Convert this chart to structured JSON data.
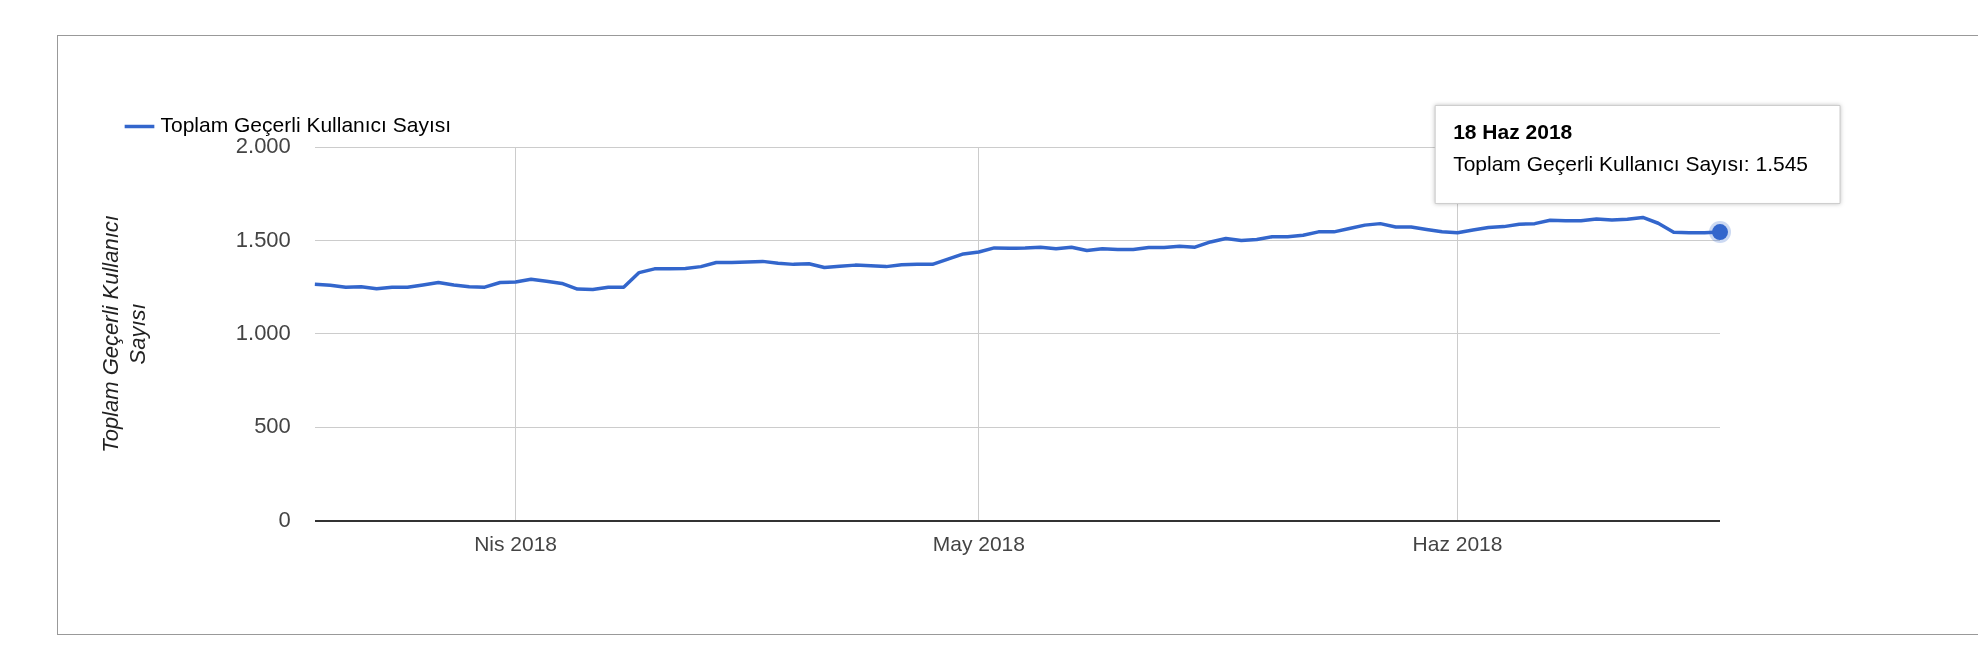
{
  "chart_data": {
    "type": "line",
    "ylabel": "Toplam Geçerli Kullanıcı Sayısı",
    "legend": "top left",
    "grid": true,
    "marker": "none",
    "line_style": "solid",
    "x": [
      "2018-03-19",
      "2018-03-20",
      "2018-03-21",
      "2018-03-22",
      "2018-03-23",
      "2018-03-24",
      "2018-03-25",
      "2018-03-26",
      "2018-03-27",
      "2018-03-28",
      "2018-03-29",
      "2018-03-30",
      "2018-03-31",
      "2018-04-01",
      "2018-04-02",
      "2018-04-03",
      "2018-04-04",
      "2018-04-05",
      "2018-04-06",
      "2018-04-07",
      "2018-04-08",
      "2018-04-09",
      "2018-04-10",
      "2018-04-11",
      "2018-04-12",
      "2018-04-13",
      "2018-04-14",
      "2018-04-15",
      "2018-04-16",
      "2018-04-17",
      "2018-04-18",
      "2018-04-19",
      "2018-04-20",
      "2018-04-21",
      "2018-04-22",
      "2018-04-23",
      "2018-04-24",
      "2018-04-25",
      "2018-04-26",
      "2018-04-27",
      "2018-04-28",
      "2018-04-29",
      "2018-04-30",
      "2018-05-01",
      "2018-05-02",
      "2018-05-03",
      "2018-05-04",
      "2018-05-05",
      "2018-05-06",
      "2018-05-07",
      "2018-05-08",
      "2018-05-09",
      "2018-05-10",
      "2018-05-11",
      "2018-05-12",
      "2018-05-13",
      "2018-05-14",
      "2018-05-15",
      "2018-05-16",
      "2018-05-17",
      "2018-05-18",
      "2018-05-19",
      "2018-05-20",
      "2018-05-21",
      "2018-05-22",
      "2018-05-23",
      "2018-05-24",
      "2018-05-25",
      "2018-05-26",
      "2018-05-27",
      "2018-05-28",
      "2018-05-29",
      "2018-05-30",
      "2018-05-31",
      "2018-06-01",
      "2018-06-02",
      "2018-06-03",
      "2018-06-04",
      "2018-06-05",
      "2018-06-06",
      "2018-06-07",
      "2018-06-08",
      "2018-06-09",
      "2018-06-10",
      "2018-06-11",
      "2018-06-12",
      "2018-06-13",
      "2018-06-14",
      "2018-06-15",
      "2018-06-16",
      "2018-06-17",
      "2018-06-18"
    ],
    "series": [
      {
        "name": "Toplam Geçerli Kullanıcı Sayısı",
        "color": "#3366cc",
        "values": [
          1265,
          1260,
          1250,
          1252,
          1242,
          1250,
          1250,
          1262,
          1275,
          1262,
          1252,
          1250,
          1275,
          1278,
          1292,
          1282,
          1270,
          1240,
          1238,
          1250,
          1250,
          1328,
          1348,
          1348,
          1350,
          1360,
          1382,
          1382,
          1385,
          1388,
          1378,
          1372,
          1375,
          1355,
          1362,
          1368,
          1365,
          1360,
          1370,
          1372,
          1372,
          1400,
          1428,
          1438,
          1460,
          1458,
          1459,
          1464,
          1456,
          1464,
          1446,
          1456,
          1451,
          1451,
          1462,
          1462,
          1469,
          1464,
          1492,
          1510,
          1500,
          1505,
          1520,
          1520,
          1528,
          1546,
          1546,
          1564,
          1582,
          1590,
          1572,
          1572,
          1559,
          1546,
          1541,
          1556,
          1569,
          1574,
          1587,
          1590,
          1608,
          1605,
          1605,
          1615,
          1610,
          1613,
          1623,
          1592,
          1544,
          1541,
          1541,
          1545
        ]
      }
    ],
    "xlim": [
      "2018-03-19",
      "2018-06-18"
    ],
    "xticks": [
      {
        "value": "2018-04-01",
        "label": "Nis 2018"
      },
      {
        "value": "2018-05-01",
        "label": "May 2018"
      },
      {
        "value": "2018-06-01",
        "label": "Haz 2018"
      }
    ],
    "ylim": [
      0,
      2000
    ],
    "yticks": [
      0,
      500,
      {
        "value": 1000,
        "label": "1.000"
      },
      {
        "value": 1500,
        "label": "1.500"
      },
      {
        "value": 2000,
        "label": "2.000"
      }
    ],
    "annotations": [
      {
        "text": "18 Haz 2018\nToplam Geçerli Kullanıcı Sayısı: 1.545",
        "x": "2018-06-18",
        "y": 1545
      }
    ]
  }
}
